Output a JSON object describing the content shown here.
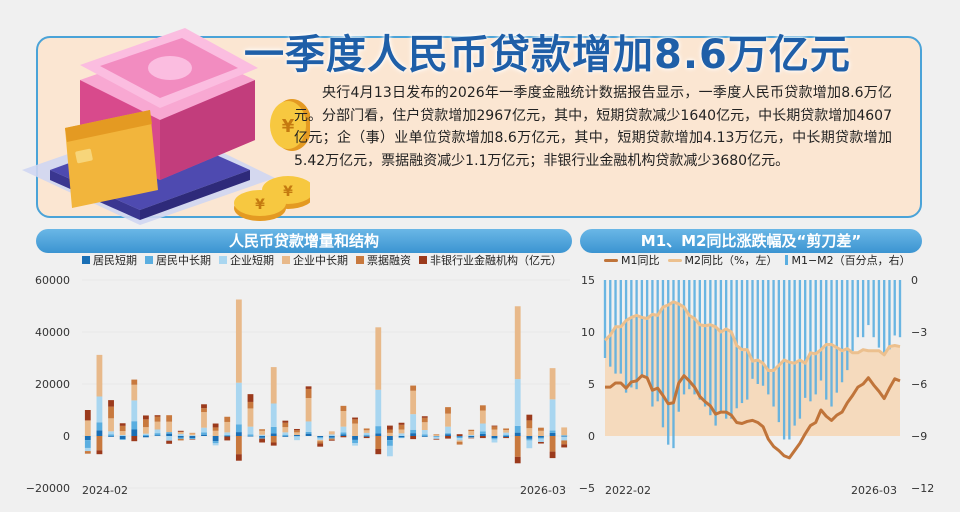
{
  "headline": "一季度人民币贷款增加8.6万亿元",
  "summary": "央行4月13日发布的2026年一季度金融统计数据报告显示，一季度人民币贷款增加8.6万亿元。分部门看，住户贷款增加2967亿元，其中，短期贷款减少1640亿元，中长期贷款增加4607亿元；企（事）业单位贷款增加8.6万亿元，其中，短期贷款增加4.13万亿元，中长期贷款增加5.42万亿元，票据融资减少1.1万亿元；非银行业金融机构贷款减少3680亿元。",
  "left_chart": {
    "title": "人民币贷款增量和结构",
    "legend": [
      "居民短期",
      "居民中长期",
      "企业短期",
      "企业中长期",
      "票据融资",
      "非银行业金融机构（亿元）"
    ],
    "colors": [
      "#1a6fb5",
      "#5aaee0",
      "#a9d6f0",
      "#e8b98a",
      "#c8793e",
      "#9b3a1c"
    ],
    "y_ticks": [
      "60000",
      "40000",
      "20000",
      "0",
      "−20000"
    ],
    "x_start": "2024-02",
    "x_end": "2026-03"
  },
  "right_chart": {
    "title": "M1、M2同比涨跌幅及“剪刀差”",
    "legend": [
      "M1同比",
      "M2同比（%，左）",
      "M1−M2（百分点，右）"
    ],
    "colors": {
      "m1": "#c0743a",
      "m2": "#ecc08e",
      "gap": "#5aaee0",
      "area": "#f6d6b4"
    },
    "y_left_ticks": [
      "15",
      "10",
      "5",
      "0",
      "−5"
    ],
    "y_right_ticks": [
      "0",
      "−3",
      "−6",
      "−9",
      "−12"
    ],
    "x_start": "2022-02",
    "x_end": "2026-03"
  },
  "chart_data": [
    {
      "type": "bar",
      "stacked": true,
      "ylim": [
        -20000,
        60000
      ],
      "series": [
        {
          "name": "居民短期",
          "values": [
            -1600,
            2200,
            -300,
            -1200,
            2500,
            -500,
            300,
            900,
            -600,
            -800,
            500,
            -2000,
            -200,
            1500,
            -100,
            -700,
            1000,
            -300,
            400,
            900,
            -400,
            -600,
            600,
            -1500,
            -300,
            1000,
            -1600,
            -500,
            1100,
            -300,
            -100,
            700,
            -300,
            -500,
            800,
            -800,
            -400,
            1300,
            -1100,
            -600,
            1200,
            -200
          ]
        },
        {
          "name": "居民中长期",
          "values": [
            -3000,
            3000,
            600,
            -300,
            3200,
            400,
            800,
            600,
            -500,
            -400,
            900,
            -800,
            400,
            3000,
            600,
            -300,
            2500,
            500,
            -100,
            700,
            -500,
            -400,
            800,
            -1200,
            500,
            2800,
            -2200,
            -300,
            1300,
            600,
            -200,
            400,
            -500,
            -200,
            1000,
            -500,
            500,
            2600,
            -600,
            -400,
            900,
            300
          ]
        },
        {
          "name": "企业短期",
          "values": [
            -1200,
            10000,
            1200,
            400,
            8000,
            500,
            1400,
            -1800,
            800,
            300,
            1800,
            -800,
            1000,
            16000,
            3000,
            500,
            9000,
            900,
            -1500,
            4000,
            -600,
            600,
            2200,
            -1000,
            700,
            14000,
            -4000,
            1000,
            6000,
            1700,
            -800,
            2500,
            -900,
            400,
            3000,
            -1200,
            800,
            18000,
            -3000,
            -1300,
            12000,
            -1500
          ]
        },
        {
          "name": "企业中长期",
          "values": [
            6000,
            16000,
            5000,
            1500,
            6000,
            2500,
            3000,
            4000,
            800,
            700,
            6000,
            2000,
            4000,
            32000,
            7000,
            1500,
            14000,
            2000,
            1000,
            9000,
            -500,
            1200,
            6000,
            4800,
            1000,
            24000,
            1200,
            1500,
            9000,
            3000,
            500,
            5000,
            -500,
            1500,
            5000,
            2500,
            1000,
            28000,
            3000,
            2000,
            12000,
            3000
          ]
        },
        {
          "name": "票据融资",
          "values": [
            -1000,
            -5500,
            4500,
            2000,
            2000,
            3000,
            2000,
            2500,
            -600,
            200,
            1500,
            1300,
            2000,
            -7000,
            2500,
            600,
            -2500,
            1700,
            800,
            3500,
            -900,
            -500,
            2000,
            1600,
            700,
            -5000,
            1300,
            1800,
            2000,
            1700,
            200,
            2500,
            -1100,
            500,
            2000,
            1200,
            600,
            -8000,
            3000,
            1200,
            -6000,
            -1500
          ]
        },
        {
          "name": "非银行业金融机构（亿元）",
          "values": [
            4000,
            -1500,
            2500,
            1000,
            -2000,
            1500,
            500,
            -1200,
            400,
            -200,
            1500,
            1500,
            -1500,
            -2500,
            3000,
            -1500,
            -1200,
            800,
            500,
            1000,
            -1200,
            -300,
            -500,
            700,
            -500,
            -2000,
            1500,
            800,
            -1200,
            600,
            -300,
            -1000,
            700,
            -200,
            -800,
            300,
            -400,
            -2500,
            2200,
            -600,
            -2500,
            -1200
          ]
        }
      ]
    },
    {
      "type": "line",
      "ylim_left": [
        -5,
        15
      ],
      "ylim_right": [
        -12,
        0
      ],
      "series": [
        {
          "name": "M1同比",
          "axis": "left",
          "values": [
            4.7,
            4.7,
            5.1,
            5.1,
            4.6,
            5.2,
            5.3,
            5.8,
            5.6,
            4.4,
            4.6,
            3.9,
            3.1,
            3.2,
            5.1,
            5.8,
            5.3,
            4.7,
            3.8,
            3.3,
            2.9,
            2.1,
            2.3,
            2.3,
            2.0,
            1.3,
            1.2,
            1.4,
            1.5,
            1.3,
            0.9,
            -0.3,
            -1.0,
            -1.4,
            -1.9,
            -2.1,
            -1.4,
            -0.7,
            0.2,
            1.0,
            1.3,
            2.5,
            1.9,
            1.5,
            2.0,
            2.3,
            3.2,
            3.9,
            4.7,
            5.0,
            5.6,
            4.9,
            4.3,
            3.6,
            4.6,
            5.5,
            5.3
          ]
        },
        {
          "name": "M2同比",
          "axis": "left",
          "values": [
            9.2,
            9.7,
            10.5,
            10.5,
            11.1,
            11.4,
            11.6,
            11.4,
            11.3,
            11.7,
            11.6,
            12.4,
            12.6,
            12.9,
            12.7,
            12.4,
            11.6,
            11.3,
            10.7,
            10.6,
            10.7,
            10.5,
            10.0,
            10.3,
            10.0,
            8.7,
            8.3,
            8.3,
            7.2,
            7.3,
            7.0,
            6.3,
            6.3,
            6.8,
            7.3,
            7.1,
            7.0,
            7.3,
            7.0,
            8.0,
            7.9,
            8.3,
            8.8,
            8.8,
            8.5,
            8.2,
            8.4,
            8.0,
            8.0,
            8.3,
            8.2,
            8.2,
            8.2,
            7.8,
            8.6,
            8.7,
            8.6
          ]
        },
        {
          "name": "M1−M2（百分点，右）",
          "axis": "right",
          "values": [
            -4.5,
            -5.0,
            -5.4,
            -5.4,
            -6.5,
            -6.2,
            -6.3,
            -5.6,
            -5.7,
            -7.3,
            -7.0,
            -8.5,
            -9.5,
            -9.7,
            -7.6,
            -6.6,
            -6.3,
            -6.6,
            -6.9,
            -7.3,
            -7.8,
            -8.4,
            -7.7,
            -8.0,
            -8.0,
            -7.4,
            -7.1,
            -6.9,
            -5.7,
            -6.0,
            -6.1,
            -6.6,
            -7.3,
            -8.2,
            -9.2,
            -9.2,
            -8.4,
            -8.0,
            -6.8,
            -7.0,
            -6.6,
            -5.8,
            -6.9,
            -7.3,
            -6.5,
            -5.9,
            -5.2,
            -4.1,
            -3.3,
            -3.3,
            -2.6,
            -3.3,
            -3.9,
            -4.2,
            -4.0,
            -3.2,
            -3.3
          ]
        }
      ]
    }
  ]
}
